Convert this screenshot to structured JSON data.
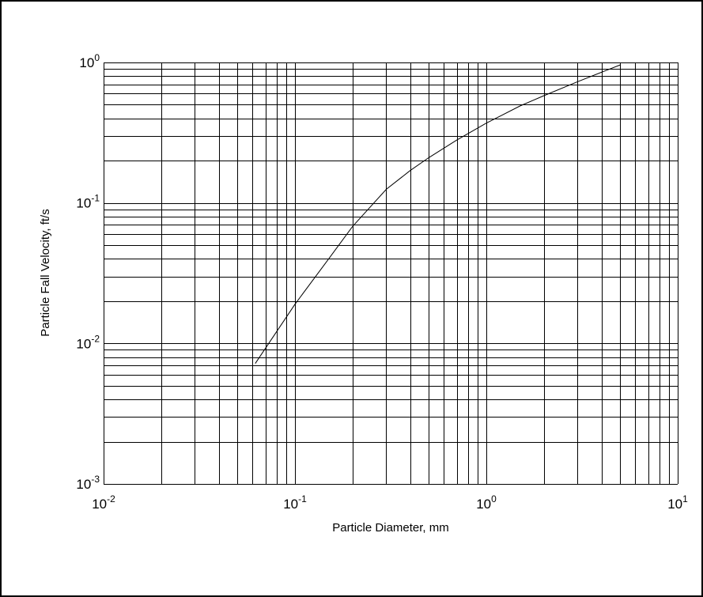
{
  "chart_data": {
    "type": "line",
    "xlabel": "Particle Diameter, mm",
    "ylabel": "Particle Fall Velocity, ft/s",
    "xscale": "log",
    "yscale": "log",
    "xlim": [
      0.01,
      10
    ],
    "ylim": [
      0.001,
      1
    ],
    "grid": true,
    "x_ticks": [
      {
        "base": "10",
        "exp": "-2",
        "value": 0.01
      },
      {
        "base": "10",
        "exp": "-1",
        "value": 0.1
      },
      {
        "base": "10",
        "exp": "0",
        "value": 1
      },
      {
        "base": "10",
        "exp": "1",
        "value": 10
      }
    ],
    "y_ticks": [
      {
        "base": "10",
        "exp": "-3",
        "value": 0.001
      },
      {
        "base": "10",
        "exp": "-2",
        "value": 0.01
      },
      {
        "base": "10",
        "exp": "-1",
        "value": 0.1
      },
      {
        "base": "10",
        "exp": "0",
        "value": 1
      }
    ],
    "series": [
      {
        "x": [
          0.062,
          0.1,
          0.15,
          0.2,
          0.3,
          0.4,
          0.5,
          0.7,
          1.0,
          1.5,
          2.0,
          3.0,
          5.0
        ],
        "y": [
          0.0072,
          0.019,
          0.04,
          0.068,
          0.125,
          0.17,
          0.21,
          0.28,
          0.37,
          0.49,
          0.58,
          0.73,
          0.96
        ]
      }
    ]
  },
  "colors": {
    "line": "#000000",
    "grid": "#000000",
    "background": "#ffffff"
  }
}
